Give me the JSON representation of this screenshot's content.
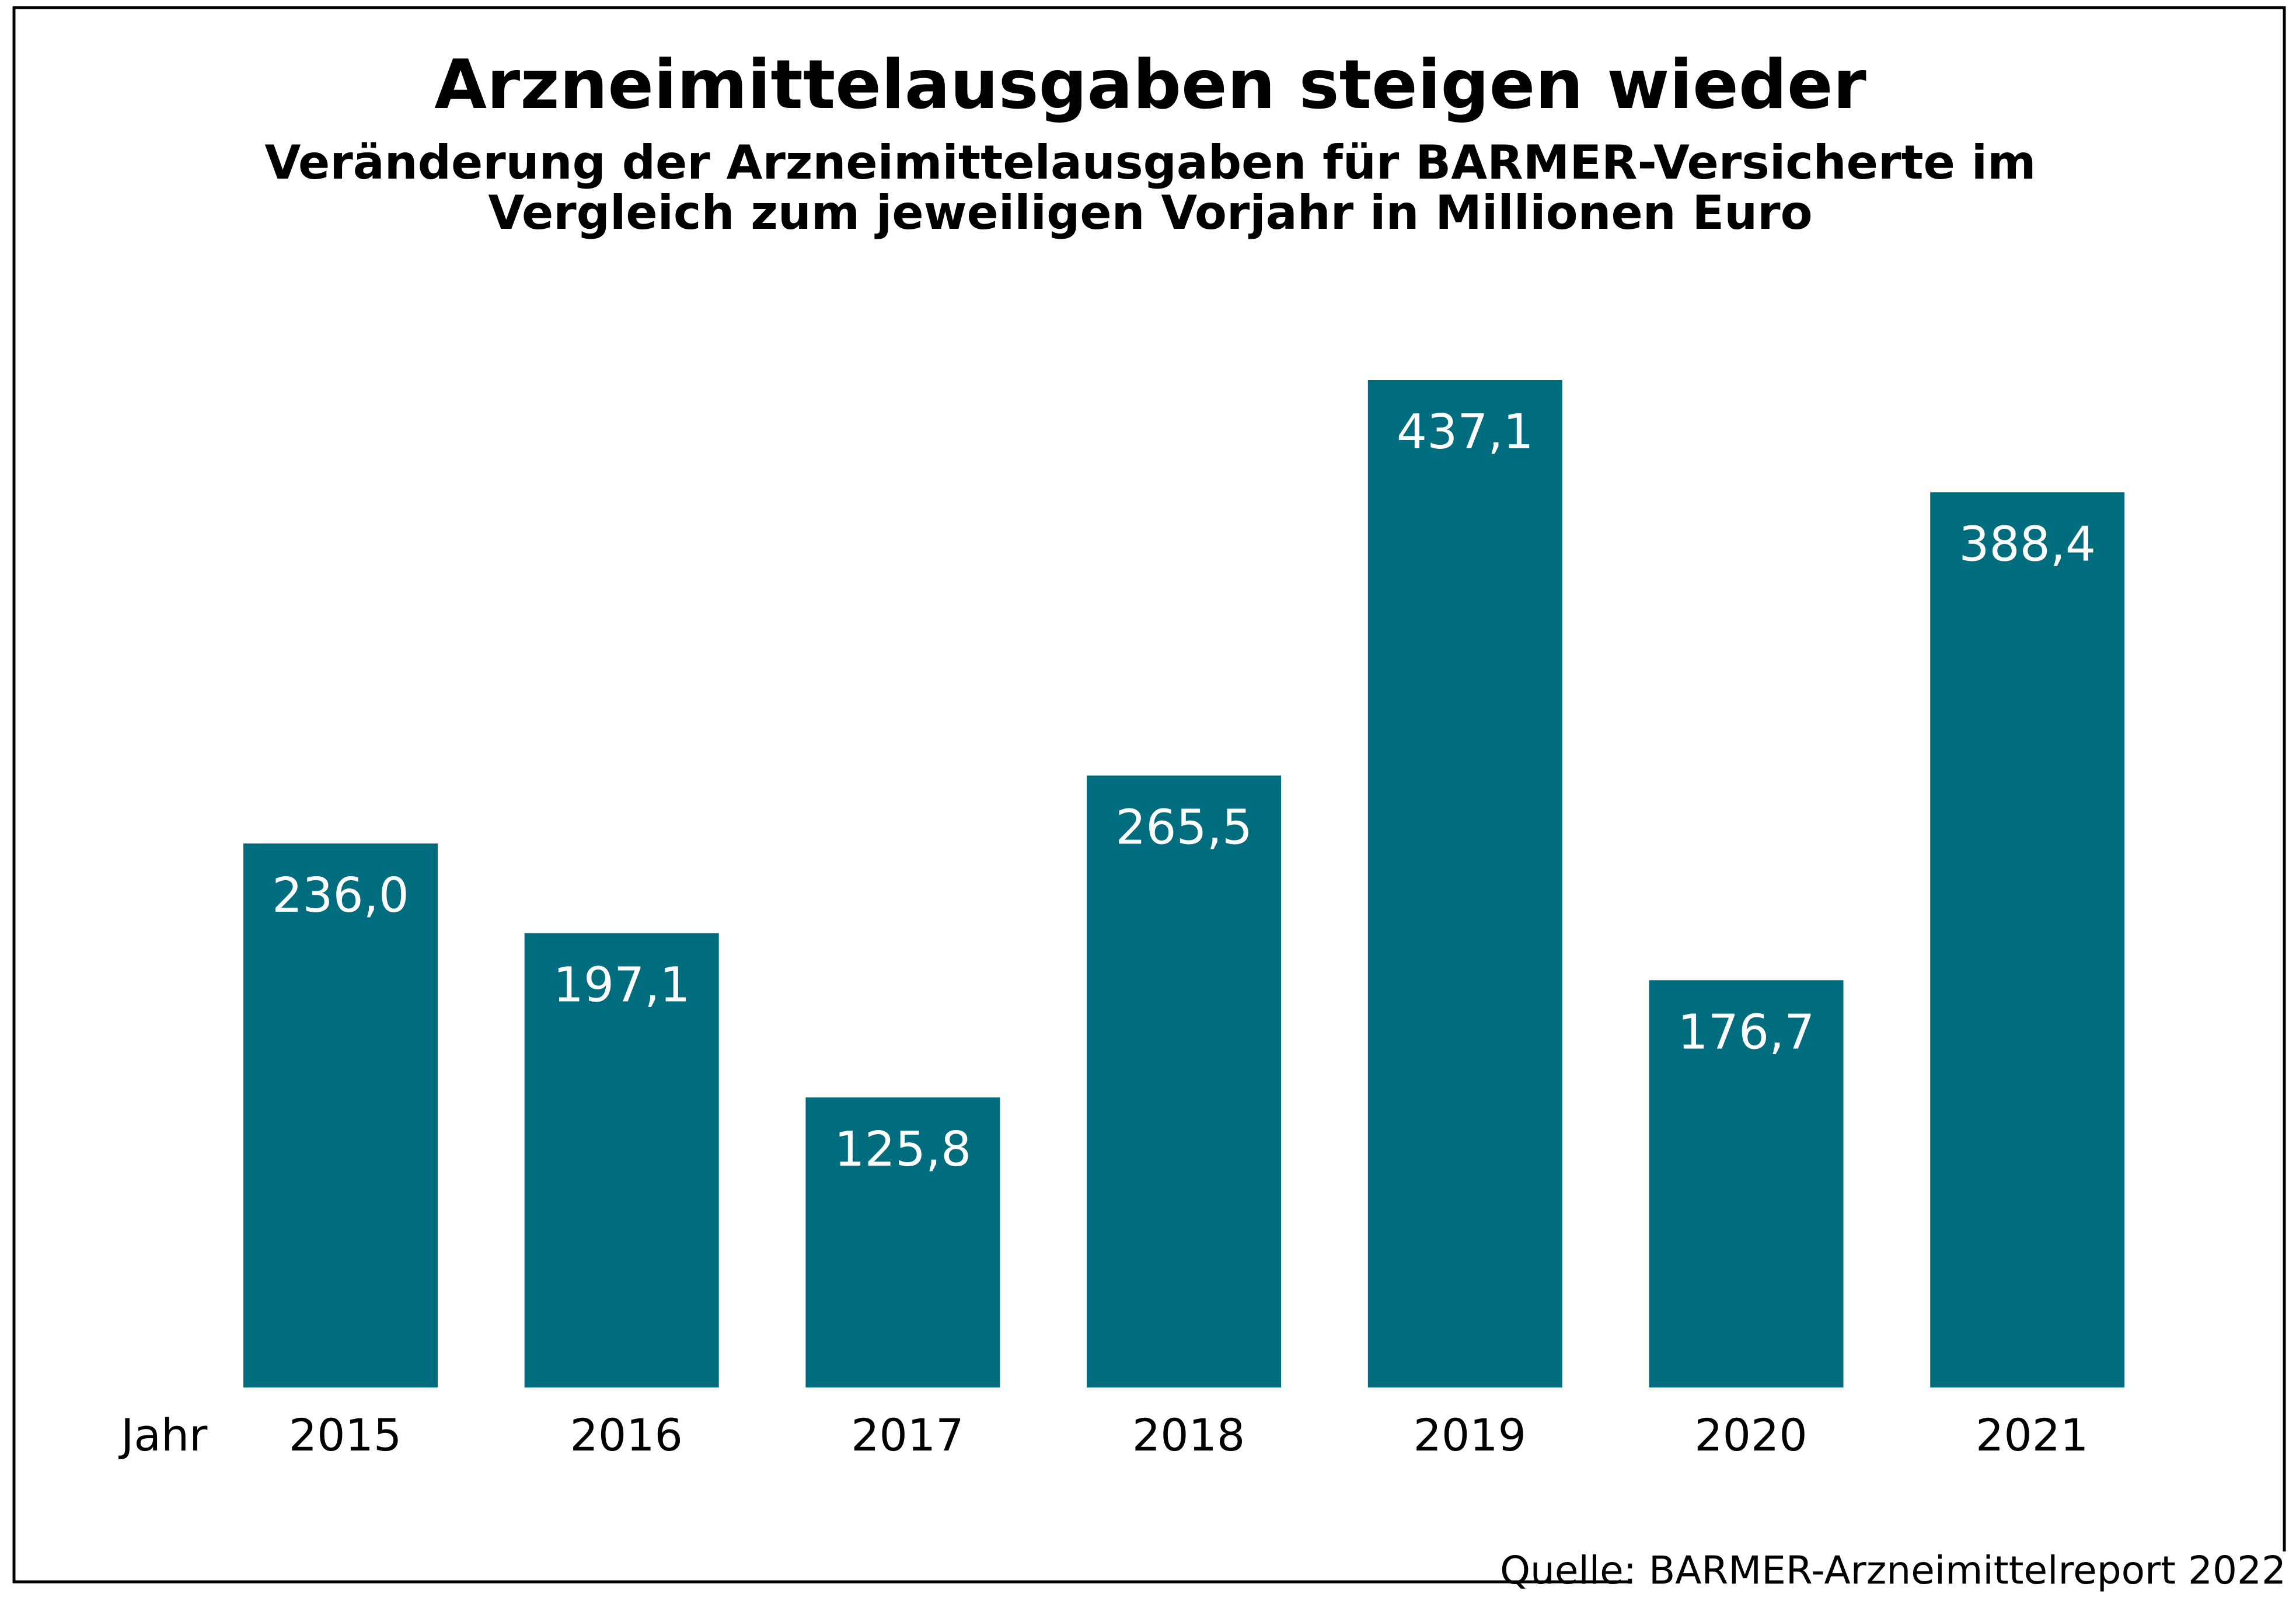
{
  "colors": {
    "bar": "#006d7f",
    "value_label": "#ffffff",
    "text": "#000000",
    "frame": "#000000",
    "background": "#ffffff"
  },
  "chart_data": {
    "type": "bar",
    "title": "Arzneimittelausgaben steigen wieder",
    "subtitle": [
      "Veränderung der Arzneimittelausgaben für BARMER-Versicherte im",
      "Vergleich zum jeweiligen Vorjahr in Millionen Euro"
    ],
    "xlabel": "Jahr",
    "ylabel": "",
    "categories": [
      "2015",
      "2016",
      "2017",
      "2018",
      "2019",
      "2020",
      "2021"
    ],
    "values": [
      236.0,
      197.1,
      125.8,
      265.5,
      437.1,
      176.7,
      388.4
    ],
    "value_labels": [
      "236,0",
      "197,1",
      "125,8",
      "265,5",
      "437,1",
      "176,7",
      "388,4"
    ],
    "unit": "Millionen Euro",
    "ylim": [
      0,
      437.1
    ],
    "grid": false,
    "y_axis_visible": false,
    "legend": "none",
    "source": "Quelle: BARMER-Arzneimittelreport 2022"
  }
}
